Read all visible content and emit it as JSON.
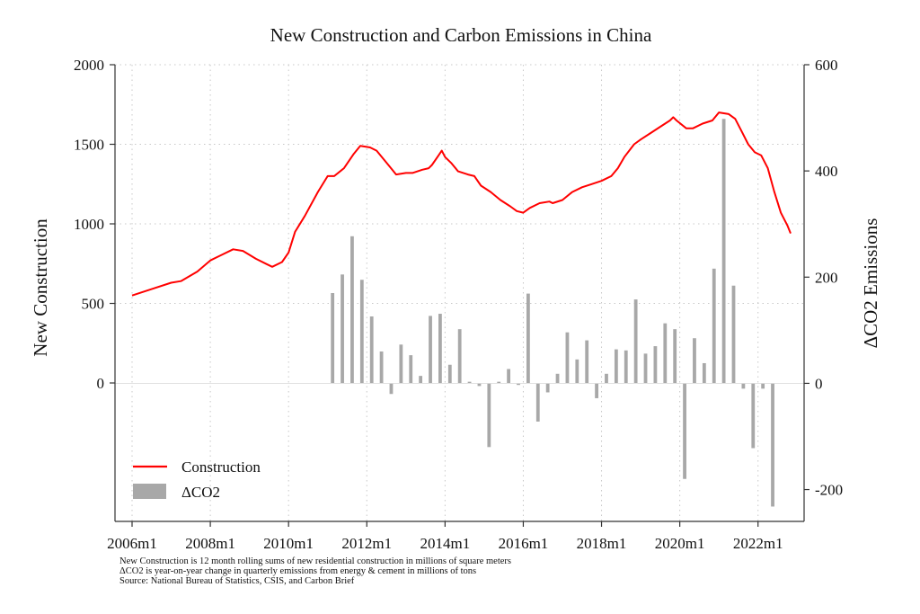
{
  "chart_data": {
    "type": "bar",
    "title": "New Construction and Carbon Emissions in China",
    "xlabel": "",
    "ylabel": "New Construction",
    "y2label": "ΔCO2 Emissions",
    "x_ticks": [
      "2006m1",
      "2008m1",
      "2010m1",
      "2012m1",
      "2014m1",
      "2016m1",
      "2018m1",
      "2020m1",
      "2022m1"
    ],
    "xlim": [
      "2006m1",
      "2022m11"
    ],
    "ylim": [
      -870,
      2000
    ],
    "y_ticks": [
      0,
      500,
      1000,
      1500,
      2000
    ],
    "y2lim": [
      -260,
      600
    ],
    "y2_ticks": [
      -200,
      0,
      200,
      400,
      600
    ],
    "grid": true,
    "legend_position": "bottom-left",
    "legend": [
      "Construction",
      "ΔCO2"
    ],
    "colors": {
      "construction": "#ff0000",
      "co2": "#a8a8a8",
      "grid": "#c8c8c8",
      "axis": "#333333"
    },
    "series": [
      {
        "name": "Construction",
        "kind": "line",
        "axis": "left",
        "points": [
          [
            "2006m1",
            550
          ],
          [
            "2006m7",
            590
          ],
          [
            "2007m1",
            630
          ],
          [
            "2007m4",
            640
          ],
          [
            "2007m9",
            700
          ],
          [
            "2008m1",
            770
          ],
          [
            "2008m4",
            800
          ],
          [
            "2008m8",
            840
          ],
          [
            "2008m11",
            830
          ],
          [
            "2009m3",
            780
          ],
          [
            "2009m6",
            750
          ],
          [
            "2009m8",
            730
          ],
          [
            "2009m11",
            760
          ],
          [
            "2010m1",
            820
          ],
          [
            "2010m3",
            950
          ],
          [
            "2010m6",
            1050
          ],
          [
            "2010m10",
            1200
          ],
          [
            "2011m1",
            1300
          ],
          [
            "2011m3",
            1300
          ],
          [
            "2011m6",
            1350
          ],
          [
            "2011m9",
            1440
          ],
          [
            "2011m11",
            1490
          ],
          [
            "2012m2",
            1480
          ],
          [
            "2012m4",
            1460
          ],
          [
            "2012m6",
            1410
          ],
          [
            "2012m8",
            1360
          ],
          [
            "2012m10",
            1310
          ],
          [
            "2013m1",
            1320
          ],
          [
            "2013m3",
            1320
          ],
          [
            "2013m6",
            1340
          ],
          [
            "2013m8",
            1350
          ],
          [
            "2013m9",
            1370
          ],
          [
            "2013m11",
            1430
          ],
          [
            "2013m12",
            1460
          ],
          [
            "2014m1",
            1420
          ],
          [
            "2014m3",
            1380
          ],
          [
            "2014m5",
            1330
          ],
          [
            "2014m8",
            1310
          ],
          [
            "2014m10",
            1300
          ],
          [
            "2014m12",
            1240
          ],
          [
            "2015m3",
            1200
          ],
          [
            "2015m6",
            1150
          ],
          [
            "2015m9",
            1110
          ],
          [
            "2015m11",
            1080
          ],
          [
            "2016m1",
            1070
          ],
          [
            "2016m3",
            1100
          ],
          [
            "2016m6",
            1130
          ],
          [
            "2016m9",
            1140
          ],
          [
            "2016m10",
            1130
          ],
          [
            "2017m1",
            1150
          ],
          [
            "2017m4",
            1200
          ],
          [
            "2017m7",
            1230
          ],
          [
            "2017m10",
            1250
          ],
          [
            "2018m1",
            1270
          ],
          [
            "2018m4",
            1300
          ],
          [
            "2018m6",
            1350
          ],
          [
            "2018m8",
            1420
          ],
          [
            "2018m11",
            1500
          ],
          [
            "2019m1",
            1530
          ],
          [
            "2019m4",
            1570
          ],
          [
            "2019m7",
            1610
          ],
          [
            "2019m10",
            1650
          ],
          [
            "2019m11",
            1670
          ],
          [
            "2019m12",
            1650
          ],
          [
            "2020m3",
            1600
          ],
          [
            "2020m5",
            1600
          ],
          [
            "2020m8",
            1630
          ],
          [
            "2020m11",
            1650
          ],
          [
            "2021m1",
            1700
          ],
          [
            "2021m4",
            1690
          ],
          [
            "2021m6",
            1660
          ],
          [
            "2021m8",
            1580
          ],
          [
            "2021m10",
            1500
          ],
          [
            "2021m12",
            1450
          ],
          [
            "2022m2",
            1430
          ],
          [
            "2022m4",
            1350
          ],
          [
            "2022m6",
            1200
          ],
          [
            "2022m8",
            1070
          ],
          [
            "2022m10",
            990
          ],
          [
            "2022m11",
            940
          ]
        ]
      },
      {
        "name": "ΔCO2",
        "kind": "bar",
        "axis": "right",
        "x": [
          "2011q1",
          "2011q2",
          "2011q3",
          "2011q4",
          "2012q1",
          "2012q2",
          "2012q3",
          "2012q4",
          "2013q1",
          "2013q2",
          "2013q3",
          "2013q4",
          "2014q1",
          "2014q2",
          "2014q3",
          "2014q4",
          "2015q1",
          "2015q2",
          "2015q3",
          "2015q4",
          "2016q1",
          "2016q2",
          "2016q3",
          "2016q4",
          "2017q1",
          "2017q2",
          "2017q3",
          "2017q4",
          "2018q1",
          "2018q2",
          "2018q3",
          "2018q4",
          "2019q1",
          "2019q2",
          "2019q3",
          "2019q4",
          "2020q1",
          "2020q2",
          "2020q3",
          "2020q4",
          "2021q1",
          "2021q2",
          "2021q3",
          "2021q4",
          "2022q1",
          "2022q2"
        ],
        "values": [
          170,
          205,
          277,
          195,
          126,
          60,
          -20,
          73,
          53,
          14,
          127,
          131,
          35,
          102,
          3,
          -5,
          -120,
          3,
          27,
          -3,
          169,
          -72,
          -17,
          18,
          96,
          45,
          81,
          -28,
          18,
          64,
          62,
          158,
          56,
          70,
          113,
          102,
          -180,
          85,
          38,
          216,
          498,
          184,
          -10,
          -122,
          -10,
          -232
        ]
      }
    ],
    "notes": [
      "New Construction is 12 month rolling sums of new residential construction in millions of square meters",
      "ΔCO2 is year-on-year change in quarterly emissions from energy & cement in millions of tons",
      "Source: National Bureau of Statistics, CSIS, and Carbon Brief"
    ]
  }
}
